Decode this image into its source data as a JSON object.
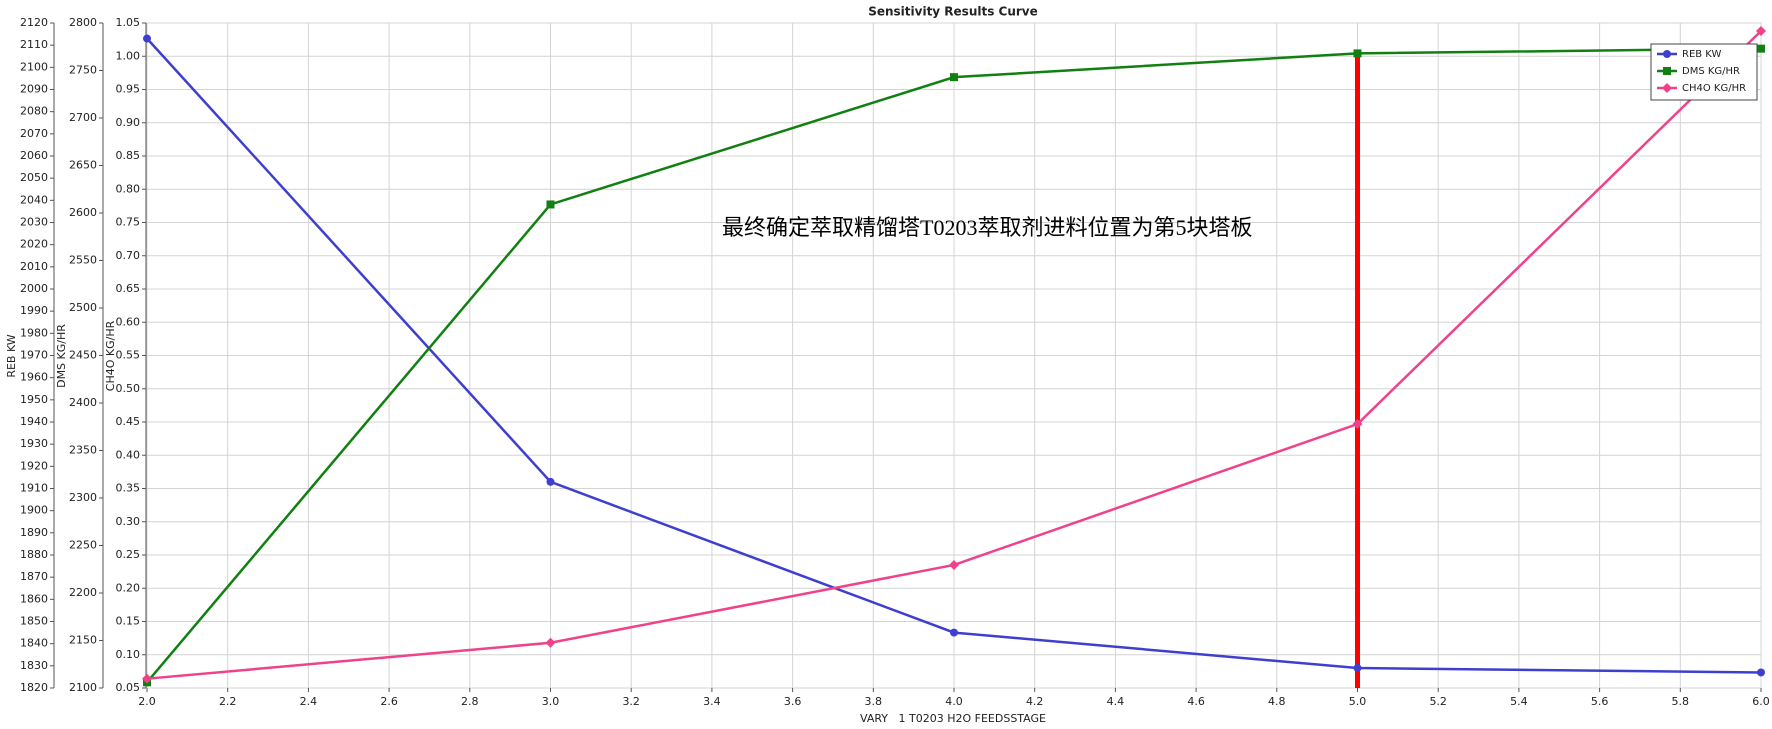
{
  "chart_data": {
    "type": "line",
    "title": "Sensitivity Results Curve",
    "xlabel": "VARY   1 T0203 H2O FEEDSSTAGE",
    "annotation": "最终确定萃取精馏塔T0203萃取剂进料位置为第5块塔板",
    "marker_x": 5,
    "marker_color": "#ff0000",
    "x": [
      2,
      3,
      4,
      5,
      6
    ],
    "xlim": [
      2,
      6
    ],
    "xticks": [
      {
        "value": 2,
        "label": "2.0"
      },
      {
        "value": 2.2,
        "label": "2.2"
      },
      {
        "value": 2.4,
        "label": "2.4"
      },
      {
        "value": 2.6,
        "label": "2.6"
      },
      {
        "value": 2.8,
        "label": "2.8"
      },
      {
        "value": 3,
        "label": "3.0"
      },
      {
        "value": 3.2,
        "label": "3.2"
      },
      {
        "value": 3.4,
        "label": "3.4"
      },
      {
        "value": 3.6,
        "label": "3.6"
      },
      {
        "value": 3.8,
        "label": "3.8"
      },
      {
        "value": 4,
        "label": "4.0"
      },
      {
        "value": 4.2,
        "label": "4.2"
      },
      {
        "value": 4.4,
        "label": "4.4"
      },
      {
        "value": 4.6,
        "label": "4.6"
      },
      {
        "value": 4.8,
        "label": "4.8"
      },
      {
        "value": 5,
        "label": "5.0"
      },
      {
        "value": 5.2,
        "label": "5.2"
      },
      {
        "value": 5.4,
        "label": "5.4"
      },
      {
        "value": 5.6,
        "label": "5.6"
      },
      {
        "value": 5.8,
        "label": "5.8"
      },
      {
        "value": 6,
        "label": "6.0"
      }
    ],
    "ylabel": "REB KW",
    "ylim": [
      1820,
      2120
    ],
    "yticks": [
      1820,
      1830,
      1840,
      1850,
      1860,
      1870,
      1880,
      1890,
      1900,
      1910,
      1920,
      1930,
      1940,
      1950,
      1960,
      1970,
      1980,
      1990,
      2000,
      2010,
      2020,
      2030,
      2040,
      2050,
      2060,
      2070,
      2080,
      2090,
      2100,
      2110,
      2120
    ],
    "y2label": "DMS KG/HR",
    "y2lim": [
      2100,
      2800
    ],
    "y2ticks": [
      2100,
      2150,
      2200,
      2250,
      2300,
      2350,
      2400,
      2450,
      2500,
      2550,
      2600,
      2650,
      2700,
      2750,
      2800
    ],
    "y3label": "CH4O KG/HR",
    "y3lim": [
      0.05,
      1.05
    ],
    "y3ticks": [
      {
        "value": 0.05,
        "label": "0.05"
      },
      {
        "value": 0.1,
        "label": "0.10"
      },
      {
        "value": 0.15,
        "label": "0.15"
      },
      {
        "value": 0.2,
        "label": "0.20"
      },
      {
        "value": 0.25,
        "label": "0.25"
      },
      {
        "value": 0.3,
        "label": "0.30"
      },
      {
        "value": 0.35,
        "label": "0.35"
      },
      {
        "value": 0.4,
        "label": "0.40"
      },
      {
        "value": 0.45,
        "label": "0.45"
      },
      {
        "value": 0.5,
        "label": "0.50"
      },
      {
        "value": 0.55,
        "label": "0.55"
      },
      {
        "value": 0.6,
        "label": "0.60"
      },
      {
        "value": 0.65,
        "label": "0.65"
      },
      {
        "value": 0.7,
        "label": "0.70"
      },
      {
        "value": 0.75,
        "label": "0.75"
      },
      {
        "value": 0.8,
        "label": "0.80"
      },
      {
        "value": 0.85,
        "label": "0.85"
      },
      {
        "value": 0.9,
        "label": "0.90"
      },
      {
        "value": 0.95,
        "label": "0.95"
      },
      {
        "value": 1,
        "label": "1.00"
      },
      {
        "value": 1.05,
        "label": "1.05"
      }
    ],
    "grid": true,
    "legend": "upper right",
    "series": [
      {
        "name": "REB KW",
        "color": "#3f3fcf",
        "marker": "circle",
        "axis": "y",
        "values": [
          2113,
          1913,
          1845,
          1829,
          1827
        ]
      },
      {
        "name": "DMS KG/HR",
        "color": "#118011",
        "marker": "square",
        "axis": "y2",
        "values": [
          2106,
          2609,
          2743,
          2768,
          2773
        ]
      },
      {
        "name": "CH4O KG/HR",
        "color": "#f0428a",
        "marker": "diamond",
        "axis": "y3",
        "values": [
          0.064,
          0.118,
          0.235,
          0.447,
          1.038
        ]
      }
    ]
  }
}
